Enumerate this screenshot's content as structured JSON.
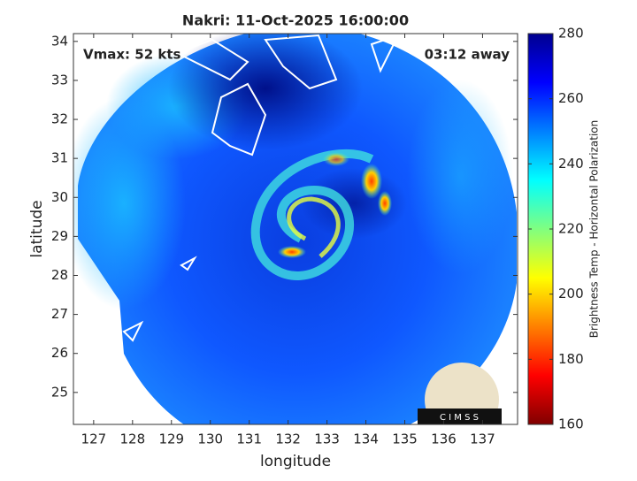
{
  "chart_data": {
    "type": "heatmap",
    "title": "Nakri: 11-Oct-2025 16:00:00",
    "annotations": [
      "Vmax: 52 kts",
      "03:12 away"
    ],
    "xlabel": "longitude",
    "ylabel": "latitude",
    "xlim": [
      126.48,
      137.9
    ],
    "xticks": [
      127,
      128,
      129,
      130,
      131,
      132,
      133,
      134,
      135,
      136,
      137
    ],
    "ylim": [
      24.18,
      34.2
    ],
    "yticks": [
      25,
      26,
      27,
      28,
      29,
      30,
      31,
      32,
      33,
      34
    ],
    "colorbar": {
      "label": "Brightness Temp - Horizontal Polarization",
      "clim": [
        160,
        280
      ],
      "ticks": [
        160,
        180,
        200,
        220,
        240,
        260,
        280
      ],
      "colormap": [
        "#800000",
        "#ff0000",
        "#ff8000",
        "#ffff00",
        "#80ff80",
        "#00ffff",
        "#0080ff",
        "#0000ff",
        "#00008f"
      ]
    },
    "logo": "C I M S S"
  }
}
